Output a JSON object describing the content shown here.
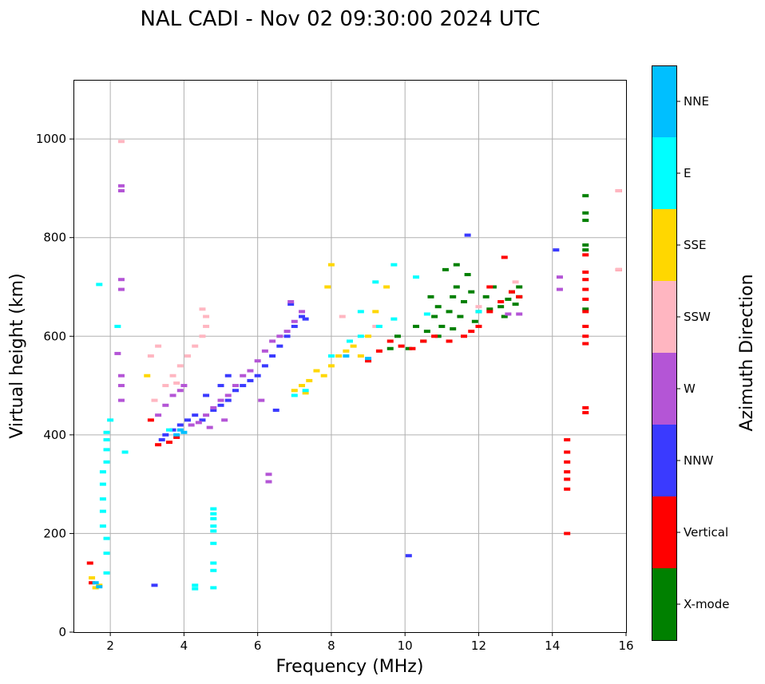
{
  "chart_data": {
    "type": "scatter",
    "title": "NAL CADI - Nov 02 09:30:00 2024 UTC",
    "xlabel": "Frequency (MHz)",
    "ylabel": "Virtual height (km)",
    "xlim": [
      1,
      16
    ],
    "ylim": [
      0,
      1120
    ],
    "xticks": [
      2,
      4,
      6,
      8,
      10,
      12,
      14,
      16
    ],
    "xtick_labels": [
      "2",
      "4",
      "6",
      "8",
      "10",
      "12",
      "14",
      "16"
    ],
    "yticks": [
      0,
      200,
      400,
      600,
      800,
      1000
    ],
    "ytick_labels": [
      "0",
      "200",
      "400",
      "600",
      "800",
      "1000"
    ],
    "grid": true,
    "colorbar": {
      "title": "Azimuth Direction",
      "categories": [
        "X-mode",
        "Vertical",
        "NNW",
        "W",
        "SSW",
        "SSE",
        "E",
        "NNE"
      ],
      "colors": [
        "#008000",
        "#ff0000",
        "#3a3aff",
        "#b455d6",
        "#ffb6c1",
        "#ffd700",
        "#00ffff",
        "#00bfff"
      ]
    },
    "series": [
      {
        "name": "X-mode",
        "points": [
          [
            10.5,
            590
          ],
          [
            10.6,
            610
          ],
          [
            10.8,
            640
          ],
          [
            10.9,
            660
          ],
          [
            11.0,
            620
          ],
          [
            11.2,
            650
          ],
          [
            11.3,
            680
          ],
          [
            11.4,
            700
          ],
          [
            11.5,
            640
          ],
          [
            11.6,
            670
          ],
          [
            11.8,
            690
          ],
          [
            12.0,
            650
          ],
          [
            12.2,
            680
          ],
          [
            12.4,
            700
          ],
          [
            12.6,
            660
          ],
          [
            12.7,
            640
          ],
          [
            12.9,
            690
          ],
          [
            13.0,
            665
          ],
          [
            13.1,
            700
          ],
          [
            11.1,
            735
          ],
          [
            11.4,
            745
          ],
          [
            9.6,
            575
          ],
          [
            9.8,
            600
          ],
          [
            10.1,
            575
          ],
          [
            10.3,
            620
          ],
          [
            14.9,
            885
          ],
          [
            14.9,
            850
          ],
          [
            14.9,
            835
          ],
          [
            14.9,
            785
          ],
          [
            14.9,
            775
          ],
          [
            14.9,
            655
          ],
          [
            11.9,
            630
          ],
          [
            12.3,
            655
          ],
          [
            10.7,
            680
          ],
          [
            11.7,
            725
          ],
          [
            13.1,
            680
          ],
          [
            12.8,
            675
          ],
          [
            10.9,
            600
          ],
          [
            11.3,
            615
          ]
        ]
      },
      {
        "name": "Vertical",
        "points": [
          [
            1.45,
            140
          ],
          [
            1.5,
            100
          ],
          [
            3.1,
            430
          ],
          [
            3.3,
            380
          ],
          [
            3.6,
            385
          ],
          [
            3.8,
            395
          ],
          [
            9.0,
            550
          ],
          [
            9.3,
            570
          ],
          [
            9.6,
            590
          ],
          [
            9.9,
            580
          ],
          [
            10.2,
            575
          ],
          [
            10.5,
            590
          ],
          [
            10.8,
            600
          ],
          [
            11.2,
            590
          ],
          [
            11.6,
            600
          ],
          [
            12.0,
            620
          ],
          [
            12.3,
            650
          ],
          [
            12.6,
            670
          ],
          [
            12.9,
            690
          ],
          [
            13.1,
            680
          ],
          [
            12.7,
            760
          ],
          [
            14.4,
            390
          ],
          [
            14.4,
            365
          ],
          [
            14.4,
            345
          ],
          [
            14.4,
            325
          ],
          [
            14.4,
            310
          ],
          [
            14.4,
            290
          ],
          [
            14.4,
            200
          ],
          [
            14.9,
            455
          ],
          [
            14.9,
            445
          ],
          [
            14.9,
            600
          ],
          [
            14.9,
            585
          ],
          [
            14.9,
            620
          ],
          [
            14.9,
            650
          ],
          [
            14.9,
            675
          ],
          [
            14.9,
            695
          ],
          [
            14.9,
            715
          ],
          [
            14.9,
            730
          ],
          [
            14.9,
            765
          ],
          [
            15.8,
            735
          ],
          [
            15.8,
            895
          ],
          [
            12.3,
            700
          ],
          [
            11.8,
            610
          ]
        ]
      },
      {
        "name": "NNW",
        "points": [
          [
            3.5,
            400
          ],
          [
            3.7,
            410
          ],
          [
            3.9,
            420
          ],
          [
            4.1,
            430
          ],
          [
            4.3,
            440
          ],
          [
            4.5,
            430
          ],
          [
            4.8,
            450
          ],
          [
            5.0,
            460
          ],
          [
            5.2,
            470
          ],
          [
            5.4,
            490
          ],
          [
            5.6,
            500
          ],
          [
            5.8,
            510
          ],
          [
            6.0,
            520
          ],
          [
            6.2,
            540
          ],
          [
            6.4,
            560
          ],
          [
            6.6,
            580
          ],
          [
            6.8,
            600
          ],
          [
            7.0,
            620
          ],
          [
            7.2,
            640
          ],
          [
            6.9,
            665
          ],
          [
            5.2,
            520
          ],
          [
            5.0,
            500
          ],
          [
            4.6,
            480
          ],
          [
            3.4,
            390
          ],
          [
            14.1,
            775
          ],
          [
            10.1,
            155
          ],
          [
            3.2,
            95
          ],
          [
            11.7,
            805
          ],
          [
            7.3,
            635
          ],
          [
            6.5,
            450
          ]
        ]
      },
      {
        "name": "W",
        "points": [
          [
            3.3,
            440
          ],
          [
            3.5,
            460
          ],
          [
            3.7,
            480
          ],
          [
            3.9,
            490
          ],
          [
            4.0,
            500
          ],
          [
            4.2,
            420
          ],
          [
            4.4,
            425
          ],
          [
            4.6,
            440
          ],
          [
            4.8,
            455
          ],
          [
            5.0,
            470
          ],
          [
            5.2,
            480
          ],
          [
            5.4,
            500
          ],
          [
            5.6,
            520
          ],
          [
            5.8,
            530
          ],
          [
            6.0,
            550
          ],
          [
            6.2,
            570
          ],
          [
            6.4,
            590
          ],
          [
            6.6,
            600
          ],
          [
            6.8,
            610
          ],
          [
            7.0,
            630
          ],
          [
            7.2,
            650
          ],
          [
            6.3,
            320
          ],
          [
            6.3,
            305
          ],
          [
            2.3,
            715
          ],
          [
            2.3,
            695
          ],
          [
            2.3,
            905
          ],
          [
            2.3,
            895
          ],
          [
            2.2,
            565
          ],
          [
            2.3,
            520
          ],
          [
            2.3,
            500
          ],
          [
            2.3,
            470
          ],
          [
            14.2,
            720
          ],
          [
            14.2,
            695
          ],
          [
            13.1,
            645
          ],
          [
            12.8,
            645
          ],
          [
            5.1,
            430
          ],
          [
            4.7,
            415
          ],
          [
            6.9,
            670
          ],
          [
            6.1,
            470
          ]
        ]
      },
      {
        "name": "SSW",
        "points": [
          [
            3.2,
            470
          ],
          [
            3.5,
            500
          ],
          [
            3.7,
            520
          ],
          [
            3.9,
            540
          ],
          [
            4.1,
            560
          ],
          [
            4.3,
            580
          ],
          [
            4.5,
            600
          ],
          [
            4.6,
            620
          ],
          [
            4.5,
            655
          ],
          [
            4.6,
            640
          ],
          [
            3.3,
            580
          ],
          [
            3.1,
            560
          ],
          [
            15.8,
            895
          ],
          [
            15.8,
            735
          ],
          [
            2.3,
            995
          ],
          [
            12.0,
            660
          ],
          [
            13.0,
            710
          ],
          [
            8.3,
            640
          ],
          [
            9.2,
            620
          ],
          [
            3.8,
            505
          ]
        ]
      },
      {
        "name": "SSE",
        "points": [
          [
            7.2,
            500
          ],
          [
            7.4,
            510
          ],
          [
            7.6,
            530
          ],
          [
            7.8,
            520
          ],
          [
            8.0,
            540
          ],
          [
            8.2,
            560
          ],
          [
            8.4,
            570
          ],
          [
            8.6,
            580
          ],
          [
            8.8,
            560
          ],
          [
            9.0,
            600
          ],
          [
            9.2,
            650
          ],
          [
            9.5,
            700
          ],
          [
            8.0,
            745
          ],
          [
            7.9,
            700
          ],
          [
            1.5,
            110
          ],
          [
            1.6,
            90
          ],
          [
            1.7,
            95
          ],
          [
            7.0,
            490
          ],
          [
            7.3,
            485
          ],
          [
            3.0,
            520
          ]
        ]
      },
      {
        "name": "E",
        "points": [
          [
            4.8,
            250
          ],
          [
            4.8,
            240
          ],
          [
            4.8,
            230
          ],
          [
            4.8,
            215
          ],
          [
            4.8,
            205
          ],
          [
            4.8,
            180
          ],
          [
            4.8,
            140
          ],
          [
            4.8,
            125
          ],
          [
            4.8,
            90
          ],
          [
            4.3,
            95
          ],
          [
            4.3,
            88
          ],
          [
            1.9,
            405
          ],
          [
            1.9,
            390
          ],
          [
            1.9,
            370
          ],
          [
            1.9,
            345
          ],
          [
            1.8,
            325
          ],
          [
            1.8,
            300
          ],
          [
            1.8,
            270
          ],
          [
            1.8,
            245
          ],
          [
            1.8,
            215
          ],
          [
            1.9,
            190
          ],
          [
            1.9,
            160
          ],
          [
            1.9,
            120
          ],
          [
            2.0,
            430
          ],
          [
            2.2,
            620
          ],
          [
            2.4,
            365
          ],
          [
            7.0,
            480
          ],
          [
            7.3,
            490
          ],
          [
            8.0,
            560
          ],
          [
            8.5,
            590
          ],
          [
            8.8,
            600
          ],
          [
            9.3,
            620
          ],
          [
            9.7,
            635
          ],
          [
            9.7,
            745
          ],
          [
            10.3,
            720
          ],
          [
            8.8,
            650
          ],
          [
            9.2,
            710
          ],
          [
            1.7,
            705
          ],
          [
            10.6,
            645
          ],
          [
            12.0,
            650
          ],
          [
            3.6,
            410
          ]
        ]
      },
      {
        "name": "NNE",
        "points": [
          [
            3.8,
            400
          ],
          [
            3.9,
            410
          ],
          [
            4.0,
            405
          ],
          [
            8.4,
            560
          ],
          [
            9.0,
            555
          ],
          [
            1.6,
            100
          ],
          [
            1.7,
            92
          ]
        ]
      }
    ]
  }
}
